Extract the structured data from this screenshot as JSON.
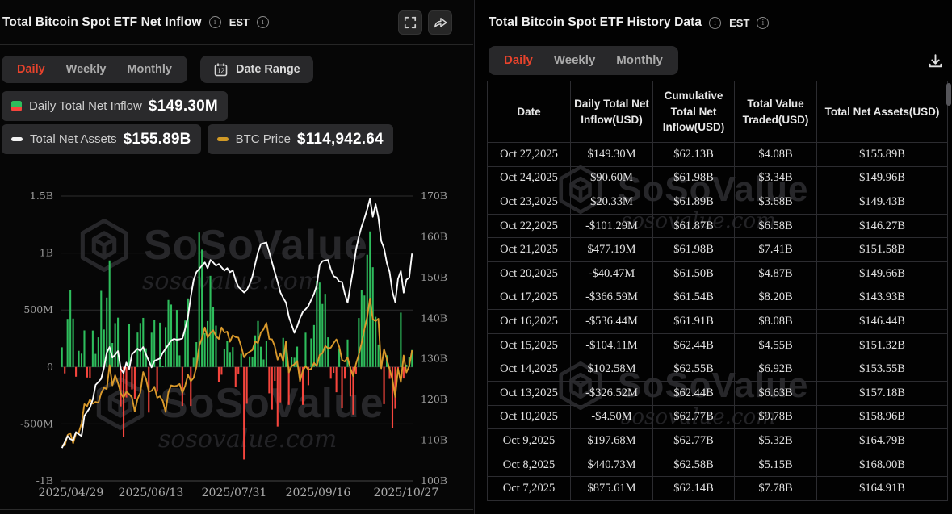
{
  "left_panel": {
    "title": "Total Bitcoin Spot ETF Net Inflow",
    "timezone": "EST",
    "tabs": {
      "labels": [
        "Daily",
        "Weekly",
        "Monthly"
      ],
      "active": "Daily"
    },
    "date_range_label": "Date Range",
    "calendar_day": "12",
    "legend": [
      {
        "label": "Daily Total Net Inflow",
        "value": "$149.30M"
      },
      {
        "label": "Total Net Assets",
        "value": "$155.89B"
      },
      {
        "label": "BTC Price",
        "value": "$114,942.64"
      }
    ]
  },
  "right_panel": {
    "title": "Total Bitcoin Spot ETF History Data",
    "timezone": "EST",
    "tabs": {
      "labels": [
        "Daily",
        "Weekly",
        "Monthly"
      ],
      "active": "Daily"
    },
    "table": {
      "columns": [
        "Date",
        "Daily Total Net Inflow(USD)",
        "Cumulative Total Net Inflow(USD)",
        "Total Value Traded(USD)",
        "Total Net Assets(USD)"
      ],
      "rows": [
        [
          "Oct 27,2025",
          "$149.30M",
          "$62.13B",
          "$4.08B",
          "$155.89B"
        ],
        [
          "Oct 24,2025",
          "$90.60M",
          "$61.98B",
          "$3.34B",
          "$149.96B"
        ],
        [
          "Oct 23,2025",
          "$20.33M",
          "$61.89B",
          "$3.68B",
          "$149.43B"
        ],
        [
          "Oct 22,2025",
          "-$101.29M",
          "$61.87B",
          "$6.58B",
          "$146.27B"
        ],
        [
          "Oct 21,2025",
          "$477.19M",
          "$61.98B",
          "$7.41B",
          "$151.58B"
        ],
        [
          "Oct 20,2025",
          "-$40.47M",
          "$61.50B",
          "$4.87B",
          "$149.66B"
        ],
        [
          "Oct 17,2025",
          "-$366.59M",
          "$61.54B",
          "$8.20B",
          "$143.93B"
        ],
        [
          "Oct 16,2025",
          "-$536.44M",
          "$61.91B",
          "$8.08B",
          "$146.44B"
        ],
        [
          "Oct 15,2025",
          "-$104.11M",
          "$62.44B",
          "$4.55B",
          "$151.32B"
        ],
        [
          "Oct 14,2025",
          "$102.58M",
          "$62.55B",
          "$6.92B",
          "$153.55B"
        ],
        [
          "Oct 13,2025",
          "-$326.52M",
          "$62.44B",
          "$6.63B",
          "$157.18B"
        ],
        [
          "Oct 10,2025",
          "-$4.50M",
          "$62.77B",
          "$9.78B",
          "$158.96B"
        ],
        [
          "Oct 9,2025",
          "$197.68M",
          "$62.77B",
          "$5.32B",
          "$164.79B"
        ],
        [
          "Oct 8,2025",
          "$440.73M",
          "$62.58B",
          "$5.15B",
          "$168.00B"
        ],
        [
          "Oct 7,2025",
          "$875.61M",
          "$62.14B",
          "$7.78B",
          "$164.91B"
        ]
      ]
    }
  },
  "watermark": {
    "brand": "SoSoValue",
    "domain": "sosovalue.com"
  },
  "colors": {
    "bar_green": "#2ebd5c",
    "bar_red": "#f5453d",
    "assets_line": "#fbfbfb",
    "btc_line": "#d9992b",
    "table_green": "#2fbe63",
    "table_red": "#f0483f",
    "active_tab": "#e8432c",
    "grid": "#2d2d2f"
  },
  "chart_data": {
    "type": "combo-bar-line",
    "title": "Total Bitcoin Spot ETF Net Inflow (Daily)",
    "x_tick_labels": [
      "2025/04/29",
      "2025/06/13",
      "2025/07/31",
      "2025/09/16",
      "2025/10/27"
    ],
    "left_axis": {
      "labels": [
        "1.5B",
        "1B",
        "500M",
        "0",
        "-500M",
        "-1B"
      ],
      "range_m": [
        -1000,
        1500
      ],
      "series": "Daily Total Net Inflow (USD millions)"
    },
    "right_axis": {
      "labels": [
        "170B",
        "160B",
        "150B",
        "140B",
        "130B",
        "120B",
        "110B",
        "100B"
      ],
      "range_b": [
        100,
        170
      ],
      "series": "Total Net Assets (USD billions)"
    },
    "btc_axis_k": [
      86.5,
      148.5
    ],
    "dates": [
      "04-29",
      "04-30",
      "05-01",
      "05-02",
      "05-05",
      "05-06",
      "05-07",
      "05-08",
      "05-09",
      "05-12",
      "05-13",
      "05-14",
      "05-15",
      "05-16",
      "05-19",
      "05-20",
      "05-21",
      "05-22",
      "05-23",
      "05-27",
      "05-28",
      "05-29",
      "05-30",
      "06-02",
      "06-03",
      "06-04",
      "06-05",
      "06-06",
      "06-09",
      "06-10",
      "06-11",
      "06-12",
      "06-13",
      "06-16",
      "06-17",
      "06-18",
      "06-20",
      "06-23",
      "06-24",
      "06-25",
      "06-26",
      "06-27",
      "06-30",
      "07-01",
      "07-02",
      "07-03",
      "07-07",
      "07-08",
      "07-09",
      "07-10",
      "07-11",
      "07-14",
      "07-15",
      "07-16",
      "07-17",
      "07-18",
      "07-21",
      "07-22",
      "07-23",
      "07-24",
      "07-25",
      "07-28",
      "07-29",
      "07-30",
      "07-31",
      "08-01",
      "08-04",
      "08-05",
      "08-06",
      "08-07",
      "08-08",
      "08-11",
      "08-12",
      "08-13",
      "08-14",
      "08-15",
      "08-18",
      "08-19",
      "08-20",
      "08-21",
      "08-22",
      "08-25",
      "08-26",
      "08-27",
      "08-28",
      "08-29",
      "09-02",
      "09-03",
      "09-04",
      "09-05",
      "09-08",
      "09-09",
      "09-10",
      "09-11",
      "09-12",
      "09-15",
      "09-16",
      "09-17",
      "09-18",
      "09-19",
      "09-22",
      "09-23",
      "09-24",
      "09-25",
      "09-26",
      "09-29",
      "09-30",
      "10-01",
      "10-02",
      "10-03",
      "10-06",
      "10-07",
      "10-08",
      "10-09",
      "10-10",
      "10-13",
      "10-14",
      "10-15",
      "10-16",
      "10-17",
      "10-20",
      "10-21",
      "10-22",
      "10-23",
      "10-24",
      "10-27"
    ],
    "inflow_m": [
      173,
      -56,
      422,
      675,
      425,
      -85,
      142,
      117,
      321,
      -92,
      -96,
      320,
      115,
      260,
      668,
      329,
      609,
      935,
      211,
      385,
      433,
      -346,
      -616,
      -268,
      378,
      -197,
      -278,
      302,
      386,
      431,
      164,
      -400,
      301,
      412,
      -216,
      389,
      6,
      350,
      588,
      548,
      226,
      501,
      102,
      -342,
      408,
      602,
      -342,
      81,
      218,
      1180,
      1030,
      297,
      403,
      800,
      523,
      363,
      -131,
      -68,
      158,
      227,
      131,
      175,
      -173,
      -58,
      116,
      -812,
      -323,
      92,
      91,
      277,
      404,
      178,
      66,
      230,
      -231,
      -374,
      -122,
      -523,
      -311,
      255,
      203,
      -333,
      88,
      81,
      179,
      -127,
      -333,
      301,
      -160,
      250,
      368,
      757,
      741,
      553,
      642,
      260,
      -103,
      -51,
      -222,
      163,
      -363,
      -103,
      241,
      -258,
      -418,
      -64,
      430,
      676,
      627,
      985,
      1190,
      875.61,
      440.73,
      197.68,
      -4.5,
      -326.52,
      102.58,
      -104.11,
      -536.44,
      -366.59,
      -40.47,
      477.19,
      -101.29,
      20.33,
      90.6,
      149.3
    ],
    "assets_b": [
      108.1,
      109.5,
      111,
      110.3,
      110,
      112,
      111.5,
      111,
      116,
      117,
      118,
      120,
      123.6,
      124.3,
      125.1,
      127.9,
      131.5,
      132.9,
      130.3,
      131,
      131.9,
      127.5,
      126.5,
      129.1,
      127.5,
      131.1,
      131.8,
      132.5,
      131.9,
      132.9,
      131.1,
      129.5,
      127.9,
      129.5,
      129.8,
      130.1,
      131.5,
      132.5,
      133.5,
      134.5,
      134.9,
      134.7,
      134.8,
      135,
      137.4,
      140.4,
      145.3,
      149.3,
      151.3,
      152.1,
      152.9,
      153.7,
      152.3,
      154.3,
      153.7,
      152.9,
      153.3,
      152.5,
      151.7,
      152.3,
      151.3,
      151.7,
      149.3,
      147.7,
      147,
      146.3,
      146.9,
      148.3,
      150.3,
      153.3,
      156.2,
      158.2,
      158.4,
      158.6,
      156.2,
      153.7,
      151.3,
      148.9,
      146.3,
      145,
      143.8,
      140.4,
      138.4,
      136.4,
      138,
      140,
      141.5,
      142.2,
      143,
      144.5,
      146,
      148,
      153,
      154,
      154.2,
      154.3,
      152,
      150.3,
      150,
      149,
      148.9,
      146,
      143.8,
      148,
      152,
      156.8,
      160,
      162.5,
      164.5,
      166.8,
      169.3,
      164.91,
      168,
      164.79,
      158.96,
      157.18,
      153.55,
      151.32,
      146.44,
      143.93,
      149.66,
      151.58,
      146.27,
      149.43,
      149.96,
      155.89
    ],
    "btc_k": [
      94.3,
      94.2,
      96.5,
      96.9,
      94.7,
      96.8,
      97,
      99,
      103.2,
      102.8,
      104.2,
      103.3,
      103.7,
      103.5,
      105.6,
      106.8,
      106.5,
      111.7,
      107.3,
      109.5,
      107.8,
      105.6,
      104.6,
      105.9,
      105.4,
      104.7,
      101.6,
      104.4,
      105.7,
      110.2,
      108.7,
      105.9,
      106.1,
      107,
      104.6,
      104.9,
      103.9,
      101.5,
      105.8,
      107.3,
      107.1,
      107.2,
      107.6,
      105.7,
      107.2,
      109.6,
      108.2,
      108.9,
      111.3,
      115.9,
      117.5,
      119.9,
      117.7,
      118.7,
      119.3,
      118,
      117.4,
      119.9,
      118.8,
      119,
      116.8,
      118.2,
      117.8,
      117.7,
      115.8,
      113.4,
      114.2,
      114.6,
      115,
      116.9,
      116.5,
      118.8,
      119.5,
      120.9,
      117.4,
      117.3,
      115.8,
      112.9,
      114.3,
      112.5,
      116.9,
      110.1,
      111.5,
      111.9,
      112.6,
      108.2,
      110.5,
      111.5,
      110.7,
      110.9,
      112.2,
      111.5,
      113.9,
      114.3,
      115.9,
      115.4,
      115.5,
      116.5,
      117.3,
      115.7,
      112.8,
      112.5,
      113.4,
      111,
      109.3,
      112,
      114,
      116.5,
      119.5,
      122.2,
      126.2,
      121.7,
      121.3,
      121.8,
      111,
      115.2,
      113,
      110.8,
      108.6,
      104.8,
      110.9,
      108,
      113.8,
      110.1,
      111.5,
      114.94
    ],
    "legend_position": "top-left",
    "grid": true
  }
}
